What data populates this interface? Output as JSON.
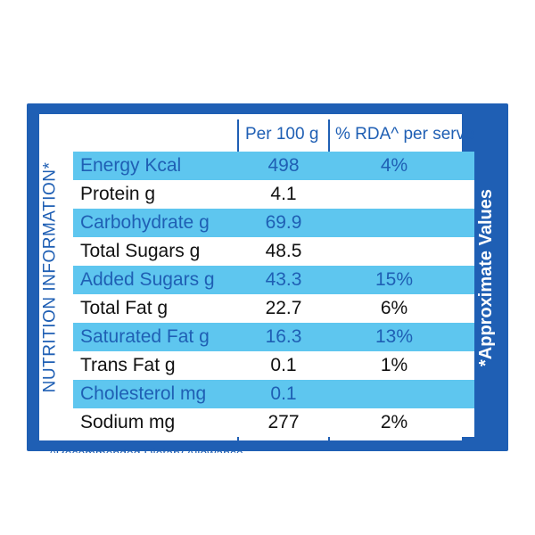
{
  "label": {
    "side_title": "NUTRITION INFORMATION*",
    "side_note": "*Approximate Values",
    "col_per100": "Per 100 g",
    "col_rda": "% RDA^ per serve",
    "footer_fragment": "^Recommended Dietary Allowance"
  },
  "rows": [
    {
      "nutrient": "Energy Kcal",
      "per100": "498",
      "rda": "4%"
    },
    {
      "nutrient": "Protein g",
      "per100": "4.1",
      "rda": ""
    },
    {
      "nutrient": "Carbohydrate g",
      "per100": "69.9",
      "rda": ""
    },
    {
      "nutrient": "Total Sugars g",
      "per100": "48.5",
      "rda": ""
    },
    {
      "nutrient": "Added Sugars g",
      "per100": "43.3",
      "rda": "15%"
    },
    {
      "nutrient": "Total Fat g",
      "per100": "22.7",
      "rda": "6%"
    },
    {
      "nutrient": "Saturated Fat g",
      "per100": "16.3",
      "rda": "13%"
    },
    {
      "nutrient": "Trans Fat g",
      "per100": "0.1",
      "rda": "1%"
    },
    {
      "nutrient": "Cholesterol mg",
      "per100": "0.1",
      "rda": ""
    },
    {
      "nutrient": "Sodium mg",
      "per100": "277",
      "rda": "2%"
    }
  ],
  "colors": {
    "panel_blue": "#1f5fb4",
    "highlight_cyan": "#5ec6ef"
  }
}
